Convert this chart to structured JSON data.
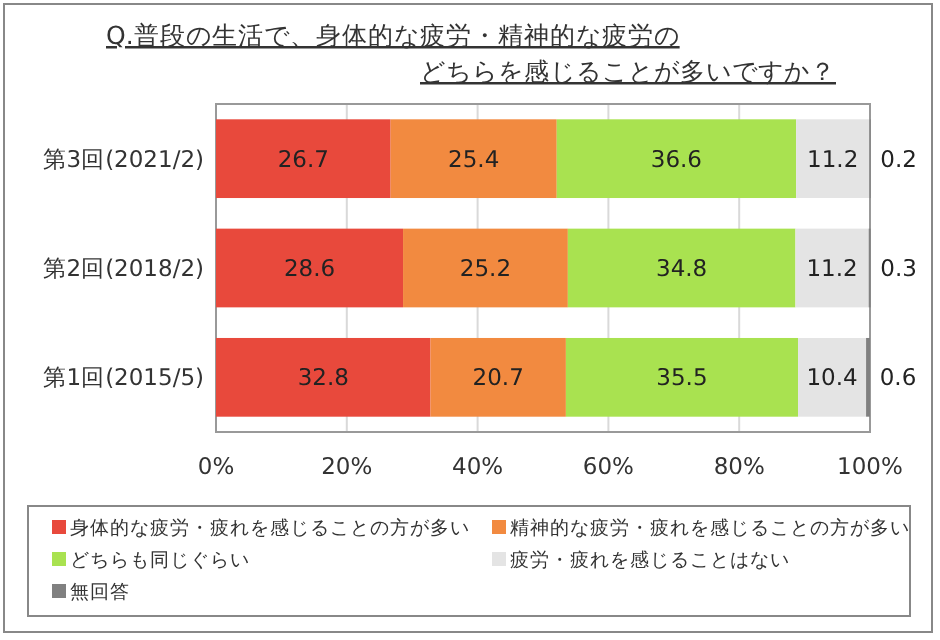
{
  "chart_data": {
    "type": "bar",
    "orientation": "horizontal",
    "stacked": true,
    "title": "Q.普段の生活で、身体的な疲労・精神的な疲労の",
    "subtitle": "どちらを感じることが多いですか？",
    "categories": [
      "第3回(2021/2)",
      "第2回(2018/2)",
      "第1回(2015/5)"
    ],
    "series": [
      {
        "name": "身体的な疲労・疲れを感じることの方が多い",
        "color": "#e8493c",
        "values": [
          26.7,
          28.6,
          32.8
        ]
      },
      {
        "name": "精神的な疲労・疲れを感じることの方が多い",
        "color": "#f28a40",
        "values": [
          25.4,
          25.2,
          20.7
        ]
      },
      {
        "name": "どちらも同じぐらい",
        "color": "#a9e250",
        "values": [
          36.6,
          34.8,
          35.5
        ]
      },
      {
        "name": "疲労・疲れを感じることはない",
        "color": "#e4e4e4",
        "values": [
          11.2,
          11.2,
          10.4
        ]
      },
      {
        "name": "無回答",
        "color": "#808080",
        "values": [
          0.2,
          0.3,
          0.6
        ]
      }
    ],
    "xlim": [
      0,
      100
    ],
    "xticks": [
      {
        "value": 0,
        "label": "0%"
      },
      {
        "value": 20,
        "label": "20%"
      },
      {
        "value": 40,
        "label": "40%"
      },
      {
        "value": 60,
        "label": "60%"
      },
      {
        "value": 80,
        "label": "80%"
      },
      {
        "value": 100,
        "label": "100%"
      }
    ],
    "grid": "x",
    "data_labels": true,
    "legend": "bottom"
  }
}
